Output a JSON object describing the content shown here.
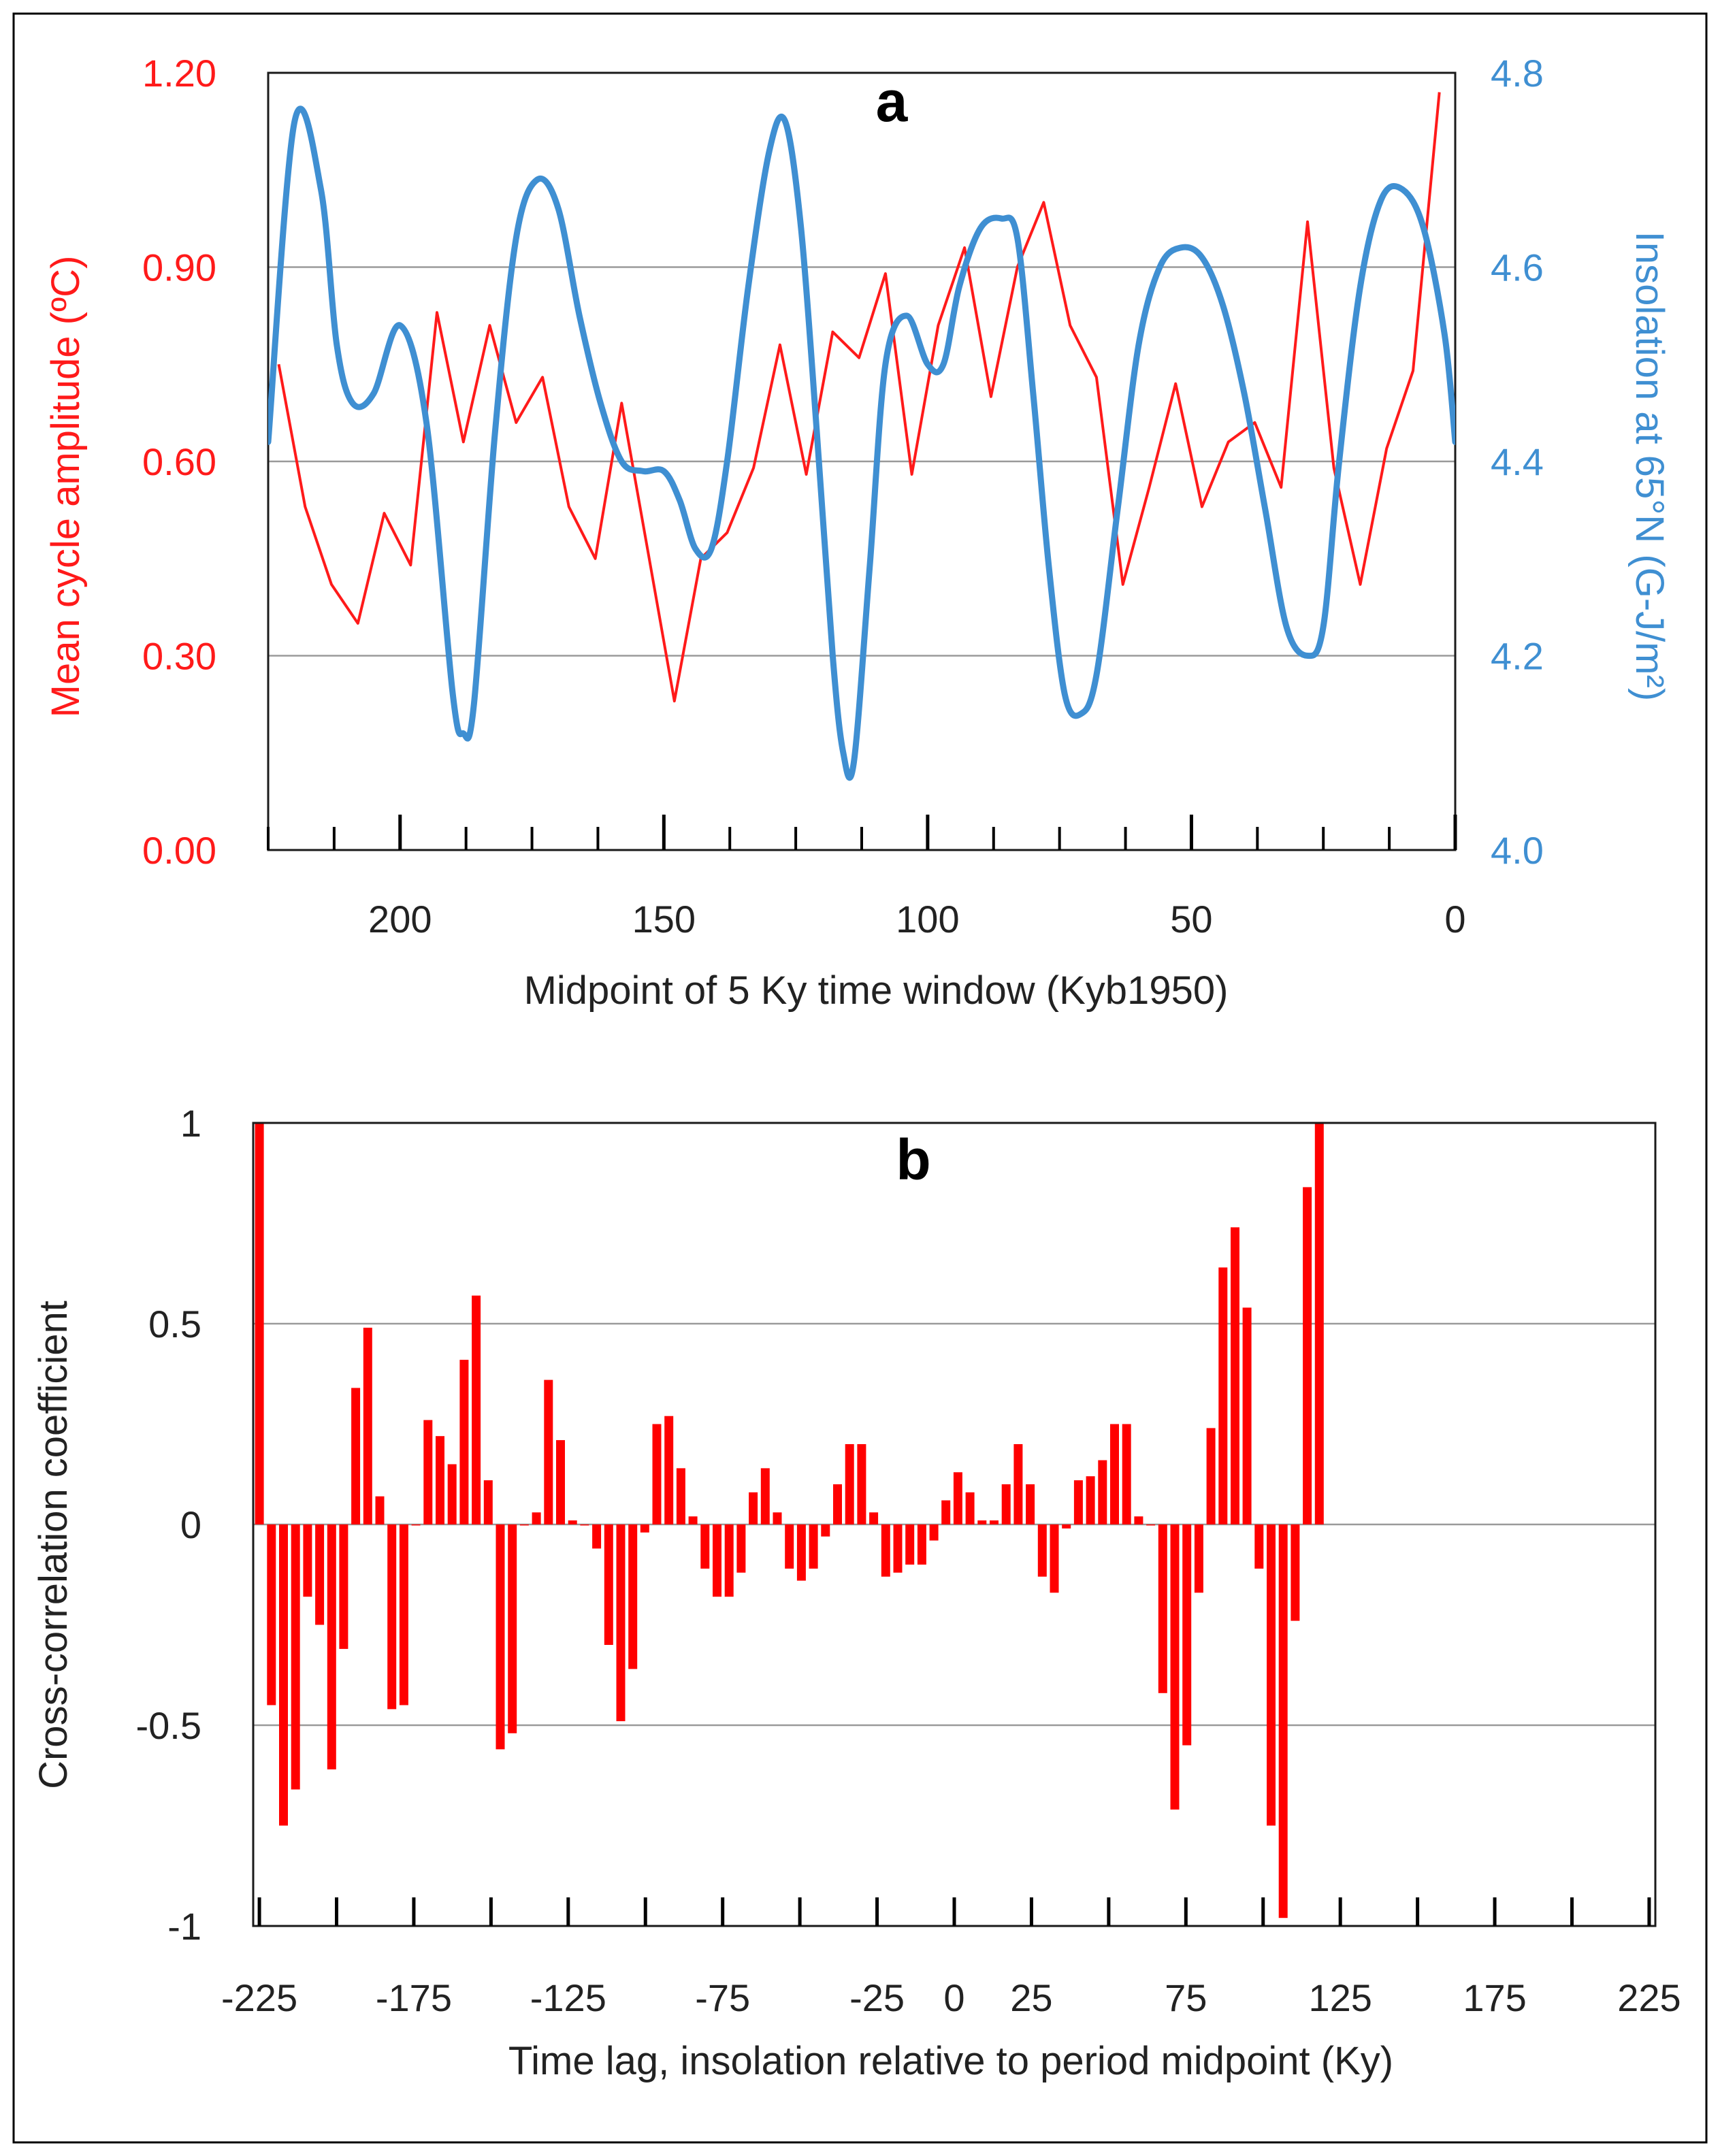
{
  "chart_data": [
    {
      "panel": "a",
      "type": "line",
      "title": "a",
      "xlabel": "Midpoint of 5 Ky time window (Kyb1950)",
      "ylabel_left": "Mean cycle amplitude (ºC)",
      "ylabel_right": "Insolation at 65°N (G-J/m²)",
      "xlim": [
        225,
        0
      ],
      "xticks": [
        "200",
        "150",
        "100",
        "50",
        "0"
      ],
      "ylim_left": [
        0,
        1.2
      ],
      "yticks_left": [
        "0.00",
        "0.30",
        "0.60",
        "0.90",
        "1.20"
      ],
      "ylim_right": [
        4.0,
        4.8
      ],
      "yticks_right": [
        "4.0",
        "4.2",
        "4.4",
        "4.6",
        "4.8"
      ],
      "colors": {
        "amplitude": "#ff1a1a",
        "insolation": "#3f8fd2"
      },
      "series": [
        {
          "name": "Mean cycle amplitude",
          "axis": "left",
          "x": [
            223,
            218,
            213,
            208,
            203,
            198,
            193,
            188,
            183,
            178,
            173,
            168,
            163,
            158,
            153,
            148,
            143,
            138,
            133,
            128,
            123,
            118,
            113,
            108,
            103,
            98,
            93,
            88,
            83,
            78,
            73,
            68,
            63,
            58,
            53,
            48,
            43,
            38,
            33,
            28,
            23,
            18,
            13,
            8,
            3
          ],
          "y": [
            0.75,
            0.53,
            0.41,
            0.35,
            0.52,
            0.44,
            0.83,
            0.63,
            0.81,
            0.66,
            0.73,
            0.53,
            0.45,
            0.69,
            0.46,
            0.23,
            0.45,
            0.49,
            0.59,
            0.78,
            0.58,
            0.8,
            0.76,
            0.89,
            0.58,
            0.81,
            0.93,
            0.7,
            0.9,
            1.0,
            0.81,
            0.73,
            0.41,
            0.56,
            0.72,
            0.53,
            0.63,
            0.66,
            0.56,
            0.97,
            0.59,
            0.41,
            0.62,
            0.74,
            1.17
          ]
        },
        {
          "name": "Insolation at 65°N",
          "axis": "right",
          "x": [
            225,
            220,
            215,
            212,
            209,
            205,
            200,
            195,
            190,
            188,
            186,
            182,
            178,
            174,
            170,
            166,
            162,
            158,
            154,
            150,
            147,
            144,
            141,
            138,
            134,
            130,
            127,
            124,
            121,
            118,
            116,
            114,
            111,
            108,
            104,
            100,
            97,
            94,
            90,
            86,
            83,
            80,
            77,
            74,
            71,
            68,
            64,
            60,
            56,
            52,
            48,
            44,
            40,
            36,
            32,
            28,
            25,
            22,
            18,
            14,
            10,
            6,
            2,
            0
          ],
          "y": [
            4.42,
            4.75,
            4.68,
            4.52,
            4.46,
            4.47,
            4.54,
            4.44,
            4.16,
            4.12,
            4.15,
            4.43,
            4.63,
            4.69,
            4.66,
            4.55,
            4.46,
            4.4,
            4.39,
            4.39,
            4.36,
            4.31,
            4.31,
            4.4,
            4.58,
            4.72,
            4.75,
            4.64,
            4.43,
            4.2,
            4.1,
            4.09,
            4.29,
            4.5,
            4.55,
            4.5,
            4.5,
            4.58,
            4.64,
            4.65,
            4.63,
            4.47,
            4.29,
            4.16,
            4.14,
            4.18,
            4.35,
            4.52,
            4.6,
            4.62,
            4.61,
            4.56,
            4.47,
            4.35,
            4.23,
            4.2,
            4.23,
            4.4,
            4.58,
            4.67,
            4.68,
            4.64,
            4.53,
            4.42
          ]
        }
      ]
    },
    {
      "panel": "b",
      "type": "bar",
      "title": "b",
      "xlabel": "Time lag, insolation relative to period midpoint (Ky)",
      "ylabel": "Cross-correlation coefficient",
      "xlim": [
        -227,
        227
      ],
      "xticks": [
        "-225",
        "-175",
        "-125",
        "-75",
        "-25",
        "0",
        "25",
        "75",
        "125",
        "175",
        "225"
      ],
      "ylim": [
        -1,
        1
      ],
      "yticks": [
        "-1",
        "-0.5",
        "0",
        "0.5",
        "1"
      ],
      "bar_color": "#ff0000",
      "lag_start": -225,
      "lag_step": 3.9,
      "values": [
        1.0,
        -0.45,
        -0.75,
        -0.66,
        -0.18,
        -0.25,
        -0.61,
        -0.31,
        0.34,
        0.49,
        0.07,
        -0.46,
        -0.45,
        0.0,
        0.26,
        0.22,
        0.15,
        0.41,
        0.57,
        0.11,
        -0.56,
        -0.52,
        0.0,
        0.03,
        0.36,
        0.21,
        0.01,
        0.0,
        -0.06,
        -0.3,
        -0.49,
        -0.36,
        -0.02,
        0.25,
        0.27,
        0.14,
        0.02,
        -0.11,
        -0.18,
        -0.18,
        -0.12,
        0.08,
        0.14,
        0.03,
        -0.11,
        -0.14,
        -0.11,
        -0.03,
        0.1,
        0.2,
        0.2,
        0.03,
        -0.13,
        -0.12,
        -0.1,
        -0.1,
        -0.04,
        0.06,
        0.13,
        0.08,
        0.01,
        0.01,
        0.1,
        0.2,
        0.1,
        -0.13,
        -0.17,
        -0.01,
        0.11,
        0.12,
        0.16,
        0.25,
        0.25,
        0.02,
        0.0,
        -0.42,
        -0.71,
        -0.55,
        -0.17,
        0.24,
        0.64,
        0.74,
        0.54,
        -0.11,
        -0.75,
        -0.98,
        -0.24,
        0.84,
        1.0
      ]
    }
  ]
}
